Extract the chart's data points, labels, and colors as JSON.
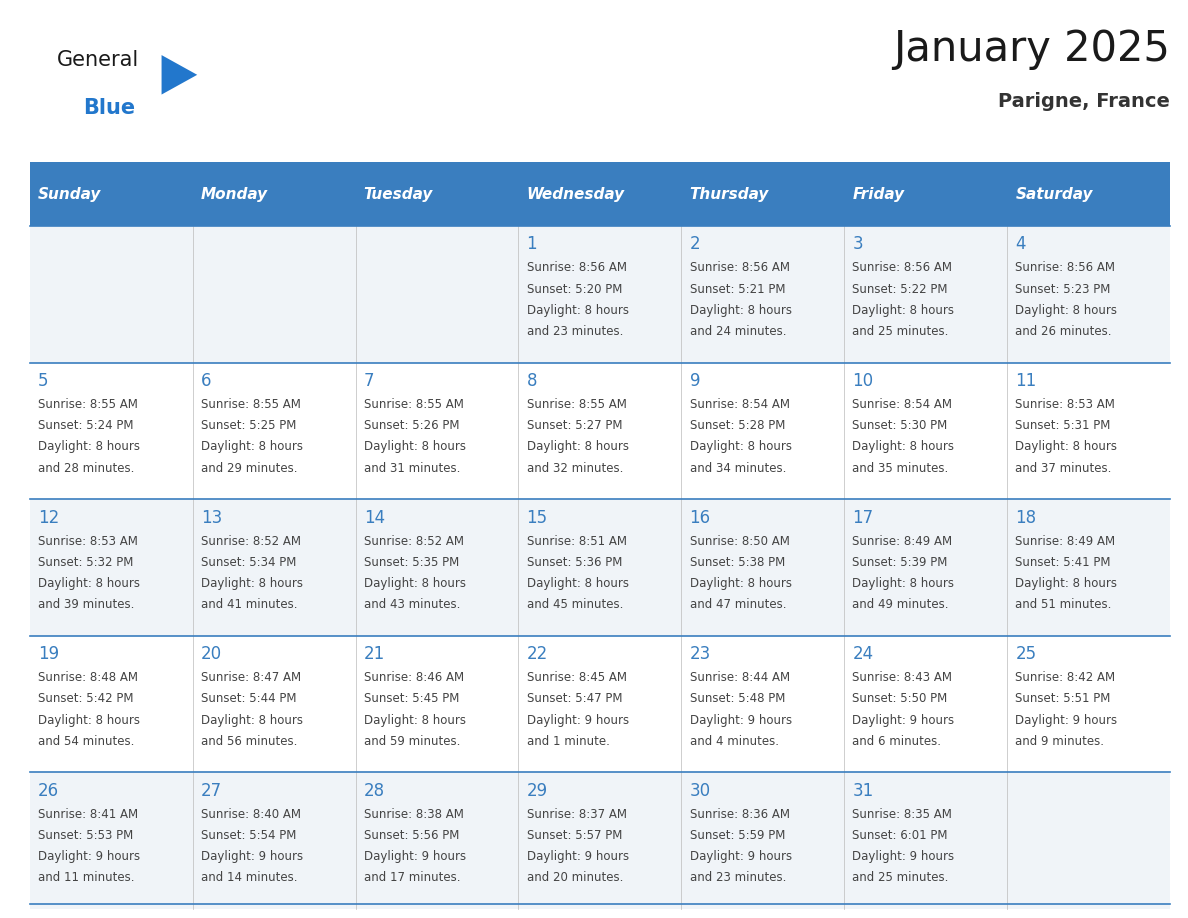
{
  "title": "January 2025",
  "subtitle": "Parigne, France",
  "days_of_week": [
    "Sunday",
    "Monday",
    "Tuesday",
    "Wednesday",
    "Thursday",
    "Friday",
    "Saturday"
  ],
  "header_bg": "#3a7ebf",
  "header_text": "#ffffff",
  "row_bg_odd": "#f0f4f8",
  "row_bg_even": "#ffffff",
  "day_number_color": "#3a7ebf",
  "text_color": "#444444",
  "title_color": "#1a1a1a",
  "subtitle_color": "#333333",
  "logo_general_color": "#1a1a1a",
  "logo_blue_color": "#2277cc",
  "calendar_data": [
    [
      {
        "day": "",
        "sunrise": "",
        "sunset": "",
        "daylight": ""
      },
      {
        "day": "",
        "sunrise": "",
        "sunset": "",
        "daylight": ""
      },
      {
        "day": "",
        "sunrise": "",
        "sunset": "",
        "daylight": ""
      },
      {
        "day": "1",
        "sunrise": "8:56 AM",
        "sunset": "5:20 PM",
        "daylight": "8 hours and 23 minutes."
      },
      {
        "day": "2",
        "sunrise": "8:56 AM",
        "sunset": "5:21 PM",
        "daylight": "8 hours and 24 minutes."
      },
      {
        "day": "3",
        "sunrise": "8:56 AM",
        "sunset": "5:22 PM",
        "daylight": "8 hours and 25 minutes."
      },
      {
        "day": "4",
        "sunrise": "8:56 AM",
        "sunset": "5:23 PM",
        "daylight": "8 hours and 26 minutes."
      }
    ],
    [
      {
        "day": "5",
        "sunrise": "8:55 AM",
        "sunset": "5:24 PM",
        "daylight": "8 hours and 28 minutes."
      },
      {
        "day": "6",
        "sunrise": "8:55 AM",
        "sunset": "5:25 PM",
        "daylight": "8 hours and 29 minutes."
      },
      {
        "day": "7",
        "sunrise": "8:55 AM",
        "sunset": "5:26 PM",
        "daylight": "8 hours and 31 minutes."
      },
      {
        "day": "8",
        "sunrise": "8:55 AM",
        "sunset": "5:27 PM",
        "daylight": "8 hours and 32 minutes."
      },
      {
        "day": "9",
        "sunrise": "8:54 AM",
        "sunset": "5:28 PM",
        "daylight": "8 hours and 34 minutes."
      },
      {
        "day": "10",
        "sunrise": "8:54 AM",
        "sunset": "5:30 PM",
        "daylight": "8 hours and 35 minutes."
      },
      {
        "day": "11",
        "sunrise": "8:53 AM",
        "sunset": "5:31 PM",
        "daylight": "8 hours and 37 minutes."
      }
    ],
    [
      {
        "day": "12",
        "sunrise": "8:53 AM",
        "sunset": "5:32 PM",
        "daylight": "8 hours and 39 minutes."
      },
      {
        "day": "13",
        "sunrise": "8:52 AM",
        "sunset": "5:34 PM",
        "daylight": "8 hours and 41 minutes."
      },
      {
        "day": "14",
        "sunrise": "8:52 AM",
        "sunset": "5:35 PM",
        "daylight": "8 hours and 43 minutes."
      },
      {
        "day": "15",
        "sunrise": "8:51 AM",
        "sunset": "5:36 PM",
        "daylight": "8 hours and 45 minutes."
      },
      {
        "day": "16",
        "sunrise": "8:50 AM",
        "sunset": "5:38 PM",
        "daylight": "8 hours and 47 minutes."
      },
      {
        "day": "17",
        "sunrise": "8:49 AM",
        "sunset": "5:39 PM",
        "daylight": "8 hours and 49 minutes."
      },
      {
        "day": "18",
        "sunrise": "8:49 AM",
        "sunset": "5:41 PM",
        "daylight": "8 hours and 51 minutes."
      }
    ],
    [
      {
        "day": "19",
        "sunrise": "8:48 AM",
        "sunset": "5:42 PM",
        "daylight": "8 hours and 54 minutes."
      },
      {
        "day": "20",
        "sunrise": "8:47 AM",
        "sunset": "5:44 PM",
        "daylight": "8 hours and 56 minutes."
      },
      {
        "day": "21",
        "sunrise": "8:46 AM",
        "sunset": "5:45 PM",
        "daylight": "8 hours and 59 minutes."
      },
      {
        "day": "22",
        "sunrise": "8:45 AM",
        "sunset": "5:47 PM",
        "daylight": "9 hours and 1 minute."
      },
      {
        "day": "23",
        "sunrise": "8:44 AM",
        "sunset": "5:48 PM",
        "daylight": "9 hours and 4 minutes."
      },
      {
        "day": "24",
        "sunrise": "8:43 AM",
        "sunset": "5:50 PM",
        "daylight": "9 hours and 6 minutes."
      },
      {
        "day": "25",
        "sunrise": "8:42 AM",
        "sunset": "5:51 PM",
        "daylight": "9 hours and 9 minutes."
      }
    ],
    [
      {
        "day": "26",
        "sunrise": "8:41 AM",
        "sunset": "5:53 PM",
        "daylight": "9 hours and 11 minutes."
      },
      {
        "day": "27",
        "sunrise": "8:40 AM",
        "sunset": "5:54 PM",
        "daylight": "9 hours and 14 minutes."
      },
      {
        "day": "28",
        "sunrise": "8:38 AM",
        "sunset": "5:56 PM",
        "daylight": "9 hours and 17 minutes."
      },
      {
        "day": "29",
        "sunrise": "8:37 AM",
        "sunset": "5:57 PM",
        "daylight": "9 hours and 20 minutes."
      },
      {
        "day": "30",
        "sunrise": "8:36 AM",
        "sunset": "5:59 PM",
        "daylight": "9 hours and 23 minutes."
      },
      {
        "day": "31",
        "sunrise": "8:35 AM",
        "sunset": "6:01 PM",
        "daylight": "9 hours and 25 minutes."
      },
      {
        "day": "",
        "sunrise": "",
        "sunset": "",
        "daylight": ""
      }
    ]
  ]
}
